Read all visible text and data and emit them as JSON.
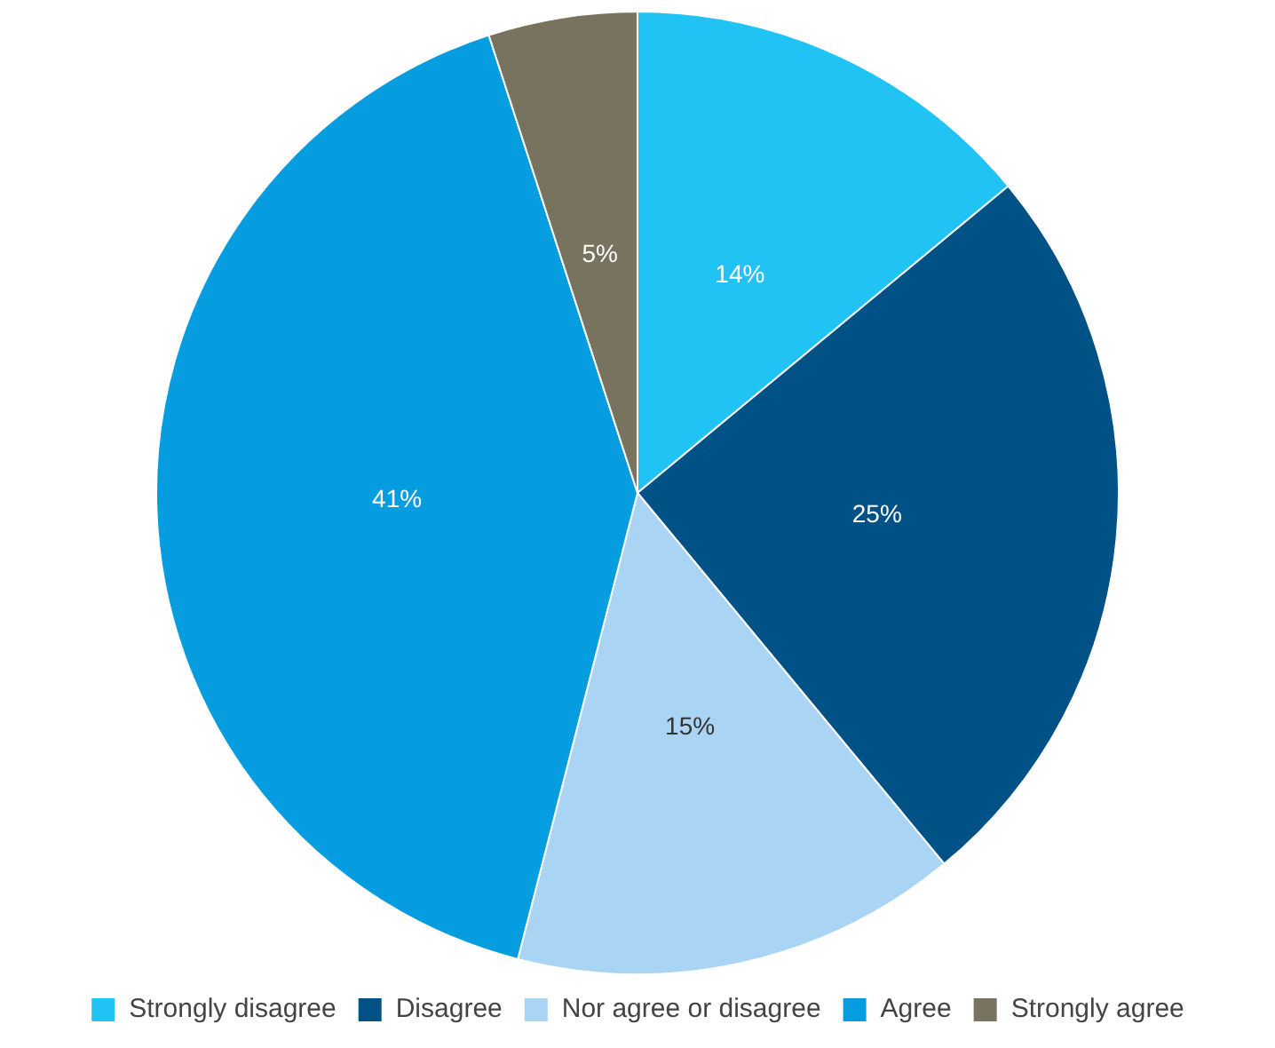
{
  "chart_data": {
    "type": "pie",
    "categories": [
      "Strongly disagree",
      "Disagree",
      "Nor agree or disagree",
      "Agree",
      "Strongly agree"
    ],
    "values": [
      14,
      25,
      15,
      41,
      5
    ],
    "colors": [
      "#20c3f3",
      "#005186",
      "#a9d4f4",
      "#069ce0",
      "#77735e"
    ],
    "value_labels": [
      "14%",
      "25%",
      "15%",
      "41%",
      "5%"
    ],
    "legend": "bottom"
  }
}
